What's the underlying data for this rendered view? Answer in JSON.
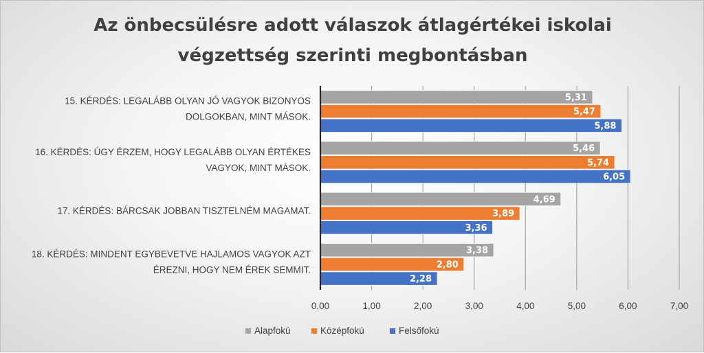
{
  "chart_data": {
    "type": "bar",
    "orientation": "horizontal",
    "title_lines": [
      "Az önbecsülésre adott válaszok átlagértékei iskolai",
      "végzettség szerinti megbontásban"
    ],
    "categories": [
      [
        "15. KÉRDÉS: LEGALÁBB OLYAN JÓ VAGYOK BIZONYOS",
        "DOLGOKBAN, MINT MÁSOK."
      ],
      [
        "16. KÉRDÉS: ÚGY ÉRZEM, HOGY LEGALÁBB OLYAN ÉRTÉKES",
        "VAGYOK, MINT MÁSOK."
      ],
      [
        "17. KÉRDÉS: BÁRCSAK JOBBAN TISZTELNÉM MAGAMAT."
      ],
      [
        "18. KÉRDÉS: MINDENT EGYBEVETVE HAJLAMOS VAGYOK AZT",
        "ÉREZNI, HOGY NEM ÉREK SEMMIT."
      ]
    ],
    "series": [
      {
        "name": "Alapfokú",
        "color": "#a5a5a5",
        "values": [
          5.31,
          5.46,
          4.69,
          3.38
        ],
        "labels": [
          "5,31",
          "5,46",
          "4,69",
          "3,38"
        ]
      },
      {
        "name": "Középfokú",
        "color": "#ed7d31",
        "values": [
          5.47,
          5.74,
          3.89,
          2.8
        ],
        "labels": [
          "5,47",
          "5,74",
          "3,89",
          "2,80"
        ]
      },
      {
        "name": "Felsőfokú",
        "color": "#4472c4",
        "values": [
          5.88,
          6.05,
          3.36,
          2.28
        ],
        "labels": [
          "5,88",
          "6,05",
          "3,36",
          "2,28"
        ]
      }
    ],
    "xlim": [
      0,
      7
    ],
    "x_ticks": [
      0,
      1,
      2,
      3,
      4,
      5,
      6,
      7
    ],
    "x_tick_labels": [
      "0,00",
      "1,00",
      "2,00",
      "3,00",
      "4,00",
      "5,00",
      "6,00",
      "7,00"
    ],
    "grid": true,
    "legend_position": "bottom"
  }
}
